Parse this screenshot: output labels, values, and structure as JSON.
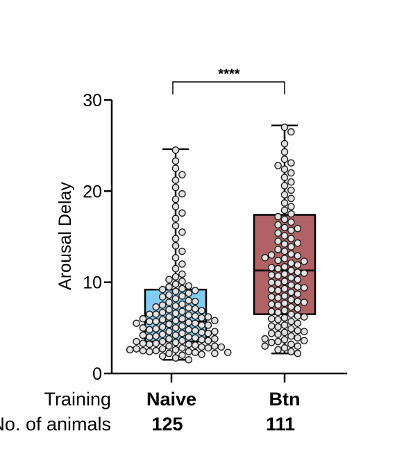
{
  "chart_data": {
    "type": "box",
    "ylabel": "Arousal Delay",
    "ylim": [
      0,
      30
    ],
    "yticks": [
      0,
      10,
      20,
      30
    ],
    "row_labels": {
      "training": "Training",
      "animals": "No. of animals"
    },
    "significance": "****",
    "groups": [
      {
        "category": "Naive",
        "n": "125",
        "color": "#7fcdf5",
        "whisker_low": 1.5,
        "q1": 3.5,
        "median": 5.7,
        "q3": 9.2,
        "whisker_high": 24.6,
        "points": [
          24.5,
          23.3,
          22.5,
          21.8,
          21.2,
          20.4,
          19.7,
          19.1,
          18.3,
          17.6,
          17.0,
          16.2,
          15.5,
          14.8,
          14.0,
          13.4,
          12.7,
          12.0,
          11.5,
          10.9,
          10.6,
          10.3,
          10.1,
          9.8,
          9.6,
          9.5,
          9.3,
          9.2,
          9.1,
          9.0,
          8.8,
          8.6,
          8.5,
          8.4,
          8.2,
          8.0,
          7.9,
          7.8,
          7.6,
          7.5,
          7.4,
          7.3,
          7.2,
          7.1,
          7.0,
          6.9,
          6.8,
          6.7,
          6.6,
          6.5,
          6.5,
          6.4,
          6.3,
          6.2,
          6.2,
          6.1,
          6.0,
          6.0,
          5.9,
          5.8,
          5.8,
          5.7,
          5.7,
          5.6,
          5.5,
          5.5,
          5.4,
          5.3,
          5.3,
          5.2,
          5.1,
          5.0,
          5.0,
          4.9,
          4.8,
          4.8,
          4.7,
          4.6,
          4.6,
          4.5,
          4.4,
          4.4,
          4.3,
          4.2,
          4.2,
          4.1,
          4.0,
          4.0,
          3.9,
          3.8,
          3.8,
          3.7,
          3.6,
          3.6,
          3.5,
          3.5,
          3.4,
          3.3,
          3.3,
          3.2,
          3.2,
          3.1,
          3.0,
          3.0,
          2.9,
          2.9,
          2.8,
          2.8,
          2.7,
          2.7,
          2.6,
          2.6,
          2.5,
          2.5,
          2.4,
          2.4,
          2.3,
          2.3,
          2.2,
          2.2,
          2.1,
          2.0,
          1.9,
          1.7,
          1.5
        ]
      },
      {
        "category": "Btn",
        "n": "111",
        "color": "#b06265",
        "whisker_low": 2.2,
        "q1": 6.5,
        "median": 11.3,
        "q3": 17.4,
        "whisker_high": 27.2,
        "points": [
          27.0,
          26.5,
          25.2,
          24.3,
          23.5,
          23.1,
          22.8,
          22.4,
          22.0,
          21.5,
          21.0,
          20.6,
          20.1,
          19.6,
          19.2,
          18.7,
          18.3,
          17.9,
          17.5,
          17.2,
          16.9,
          16.6,
          16.3,
          16.0,
          15.7,
          15.4,
          15.1,
          14.8,
          14.5,
          14.2,
          13.9,
          13.6,
          13.4,
          13.1,
          12.9,
          12.6,
          12.4,
          12.1,
          11.9,
          11.7,
          11.5,
          11.3,
          11.1,
          10.9,
          10.7,
          10.5,
          10.3,
          10.1,
          9.9,
          9.7,
          9.5,
          9.3,
          9.1,
          8.9,
          8.7,
          8.5,
          8.3,
          8.1,
          7.9,
          7.7,
          7.5,
          7.3,
          7.1,
          6.9,
          6.7,
          6.5,
          6.3,
          6.1,
          5.9,
          5.7,
          5.5,
          5.3,
          5.1,
          4.9,
          4.7,
          4.5,
          4.3,
          4.1,
          3.9,
          3.7,
          3.5,
          3.4,
          3.2,
          3.0,
          2.8,
          2.6,
          2.4,
          2.2,
          13.0,
          12.3,
          11.6,
          10.8,
          10.0,
          9.2,
          8.4,
          7.6,
          6.8,
          6.0,
          5.2,
          4.4,
          3.6,
          3.0,
          15.9,
          14.3,
          12.7,
          11.0,
          9.4,
          7.8,
          6.2,
          4.6,
          3.8
        ]
      }
    ]
  }
}
